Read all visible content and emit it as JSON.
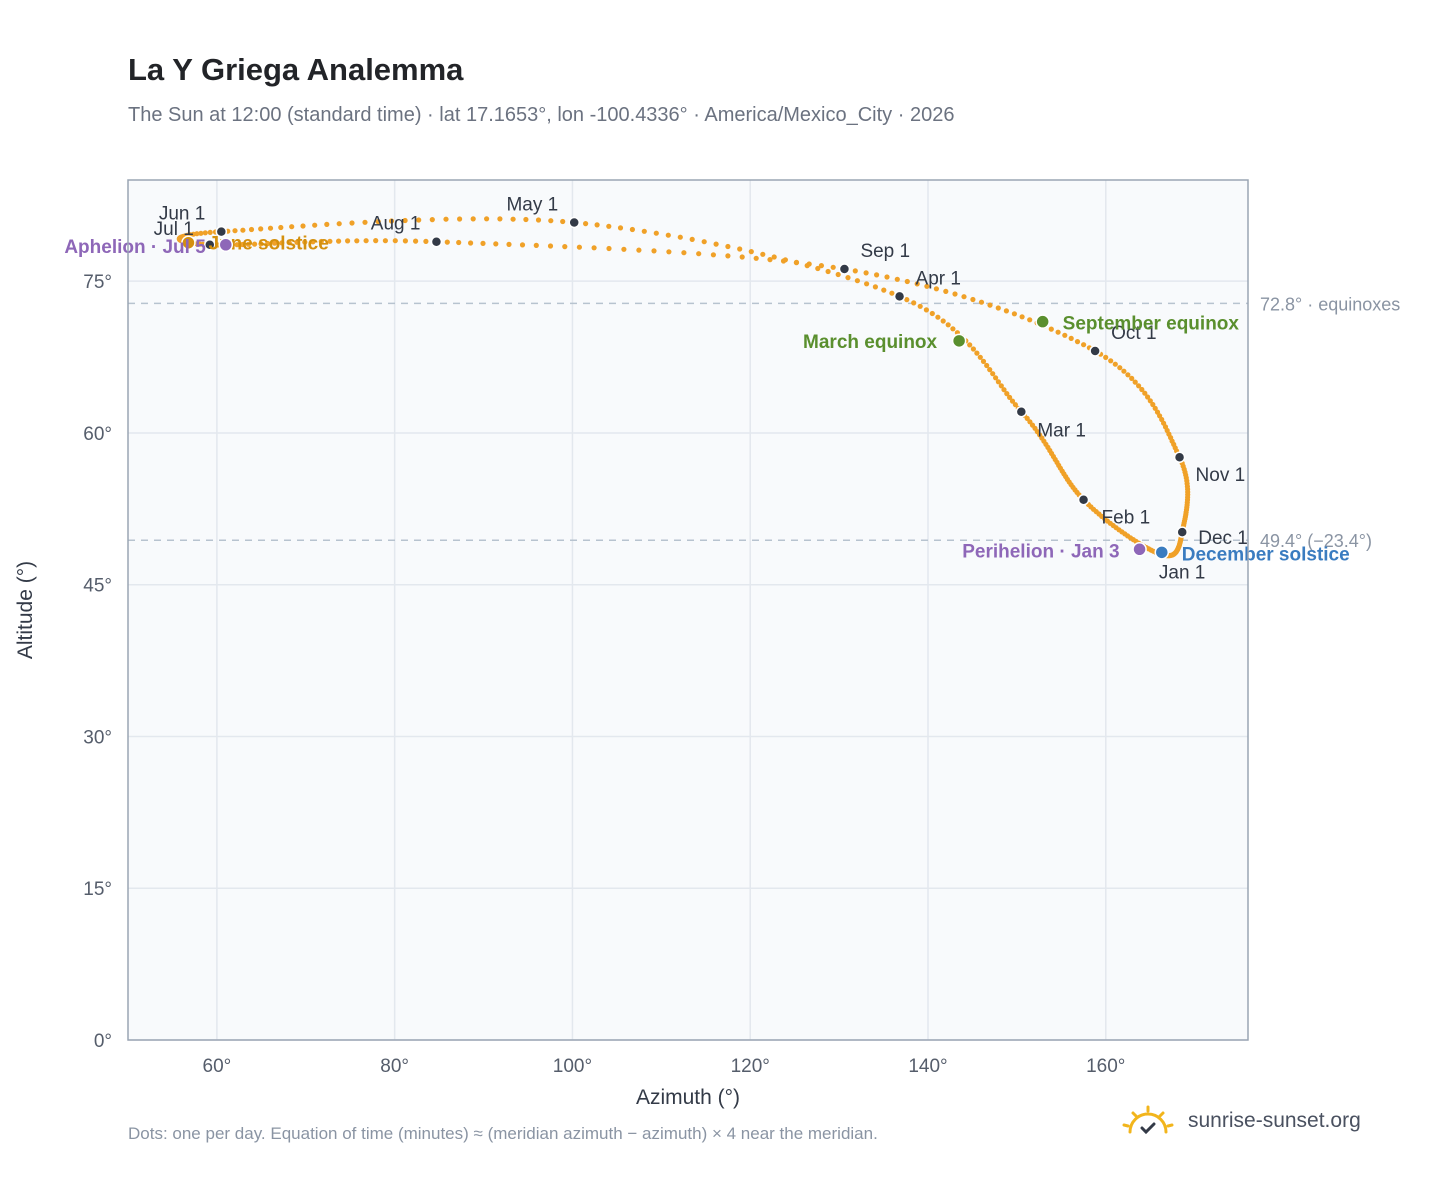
{
  "header": {
    "title": "La Y Griega Analemma",
    "subtitle": "The Sun at 12:00 (standard time) · lat 17.1653°, lon -100.4336° · America/Mexico_City · 2026"
  },
  "footer": {
    "note": "Dots: one per day. Equation of time (minutes) ≈ (meridian azimuth − azimuth) × 4 near the meridian.",
    "brand": "sunrise-sunset.org",
    "brand_icon": "sun-check-icon"
  },
  "colors": {
    "curve": "#f0a128",
    "month_marker": "#333a47",
    "equinox": "#5a8f2e",
    "solstice_december": "#3a7cc0",
    "solstice_june": "#d4900e",
    "apsis": "#8e67b8",
    "reference_line": "#b7c3cf",
    "plot_bg": "#f8fafc"
  },
  "chart_data": {
    "type": "scatter",
    "xlabel": "Azimuth (°)",
    "ylabel": "Altitude (°)",
    "xlim": [
      50,
      176
    ],
    "ylim": [
      0,
      85
    ],
    "xticks": [
      60,
      80,
      100,
      120,
      140,
      160
    ],
    "xtick_labels": [
      "60°",
      "80°",
      "100°",
      "120°",
      "140°",
      "160°"
    ],
    "yticks": [
      0,
      15,
      30,
      45,
      60,
      75
    ],
    "ytick_labels": [
      "0°",
      "15°",
      "30°",
      "45°",
      "60°",
      "75°"
    ],
    "grid": true,
    "reference_lines": [
      {
        "y": 72.8,
        "label": "72.8° · equinoxes"
      },
      {
        "y": 49.4,
        "label": "49.4° (−23.4°)"
      }
    ],
    "month_markers": [
      {
        "label": "Jan 1",
        "azimuth": 166.2,
        "altitude": 48.0
      },
      {
        "label": "Feb 1",
        "azimuth": 157.5,
        "altitude": 53.4
      },
      {
        "label": "Mar 1",
        "azimuth": 150.5,
        "altitude": 62.1
      },
      {
        "label": "Apr 1",
        "azimuth": 136.8,
        "altitude": 73.5
      },
      {
        "label": "May 1",
        "azimuth": 100.2,
        "altitude": 80.8
      },
      {
        "label": "Jun 1",
        "azimuth": 60.5,
        "altitude": 79.9
      },
      {
        "label": "Jul 1",
        "azimuth": 59.2,
        "altitude": 78.6
      },
      {
        "label": "Aug 1",
        "azimuth": 84.7,
        "altitude": 78.9
      },
      {
        "label": "Sep 1",
        "azimuth": 130.6,
        "altitude": 76.2
      },
      {
        "label": "Oct 1",
        "azimuth": 158.8,
        "altitude": 68.1
      },
      {
        "label": "Nov 1",
        "azimuth": 168.3,
        "altitude": 57.6
      },
      {
        "label": "Dec 1",
        "azimuth": 168.6,
        "altitude": 50.2
      }
    ],
    "special_points": [
      {
        "key": "march_equinox",
        "label": "March equinox",
        "azimuth": 143.5,
        "altitude": 69.1
      },
      {
        "key": "september_equinox",
        "label": "September equinox",
        "azimuth": 152.9,
        "altitude": 71.0
      },
      {
        "key": "june_solstice",
        "label": "June solstice",
        "azimuth": 56.8,
        "altitude": 78.8
      },
      {
        "key": "december_solstice",
        "label": "December solstice",
        "azimuth": 166.3,
        "altitude": 48.2
      },
      {
        "key": "perihelion",
        "label": "Perihelion · Jan 3",
        "azimuth": 163.8,
        "altitude": 48.5
      },
      {
        "key": "aphelion",
        "label": "Aphelion · Jul 5",
        "azimuth": 61.0,
        "altitude": 78.6
      }
    ]
  }
}
